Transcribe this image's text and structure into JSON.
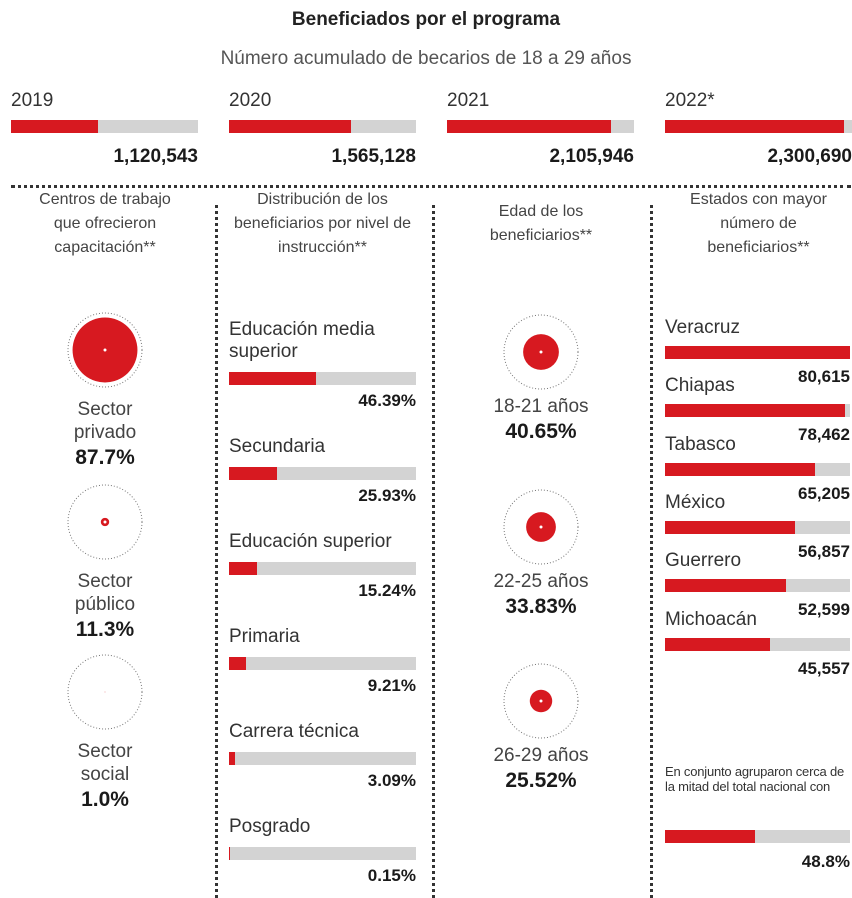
{
  "chart_data": [
    {
      "type": "bar",
      "title": "Beneficiados por el programa",
      "subtitle": "Número acumulado de becarios de 18 a 29 años",
      "categories": [
        "2019",
        "2020",
        "2021",
        "2022*"
      ],
      "values": [
        1120543,
        1565128,
        2105946,
        2300690
      ],
      "value_labels": [
        "1,120,543",
        "1,565,128",
        "2,105,946",
        "2,300,690"
      ],
      "xlim": [
        0,
        2400000
      ],
      "color": "#d71920",
      "track_color": "#d3d3d3"
    },
    {
      "type": "circle",
      "title": "Centros de trabajo que ofrecieron capacitación**",
      "categories": [
        "Sector privado",
        "Sector público",
        "Sector social"
      ],
      "values": [
        87.7,
        11.3,
        1.0
      ],
      "value_labels": [
        "87.7%",
        "11.3%",
        "1.0%"
      ],
      "xlim": [
        0,
        100
      ],
      "color": "#d71920"
    },
    {
      "type": "bar",
      "title": "Distribución de los beneficiarios por nivel de instrucción**",
      "categories": [
        "Educación media superior",
        "Secundaria",
        "Educación superior",
        "Primaria",
        "Carrera técnica",
        "Posgrado"
      ],
      "values": [
        46.39,
        25.93,
        15.24,
        9.21,
        3.09,
        0.15
      ],
      "value_labels": [
        "46.39%",
        "25.93%",
        "15.24%",
        "9.21%",
        "3.09%",
        "0.15%"
      ],
      "xlim": [
        0,
        100
      ],
      "color": "#d71920",
      "track_color": "#d3d3d3"
    },
    {
      "type": "circle",
      "title": "Edad de los beneficiarios**",
      "categories": [
        "18-21 años",
        "22-25 años",
        "26-29 años"
      ],
      "values": [
        40.65,
        33.83,
        25.52
      ],
      "value_labels": [
        "40.65%",
        "33.83%",
        "25.52%"
      ],
      "xlim": [
        0,
        100
      ],
      "color": "#d71920"
    },
    {
      "type": "bar",
      "title": "Estados con mayor número de beneficiarios**",
      "categories": [
        "Veracruz",
        "Chiapas",
        "Tabasco",
        "México",
        "Guerrero",
        "Michoacán"
      ],
      "values": [
        80615,
        78462,
        65205,
        56857,
        52599,
        45557
      ],
      "value_labels": [
        "80,615",
        "78,462",
        "65,205",
        "56,857",
        "52,599",
        "45,557"
      ],
      "xlim": [
        0,
        80615
      ],
      "color": "#d71920",
      "track_color": "#d3d3d3"
    },
    {
      "type": "bar",
      "title": "En conjunto agruparon cerca de la mitad del total nacional con",
      "values": [
        48.8
      ],
      "value_labels": [
        "48.8%"
      ],
      "xlim": [
        0,
        100
      ],
      "color": "#d71920",
      "track_color": "#d3d3d3"
    }
  ]
}
